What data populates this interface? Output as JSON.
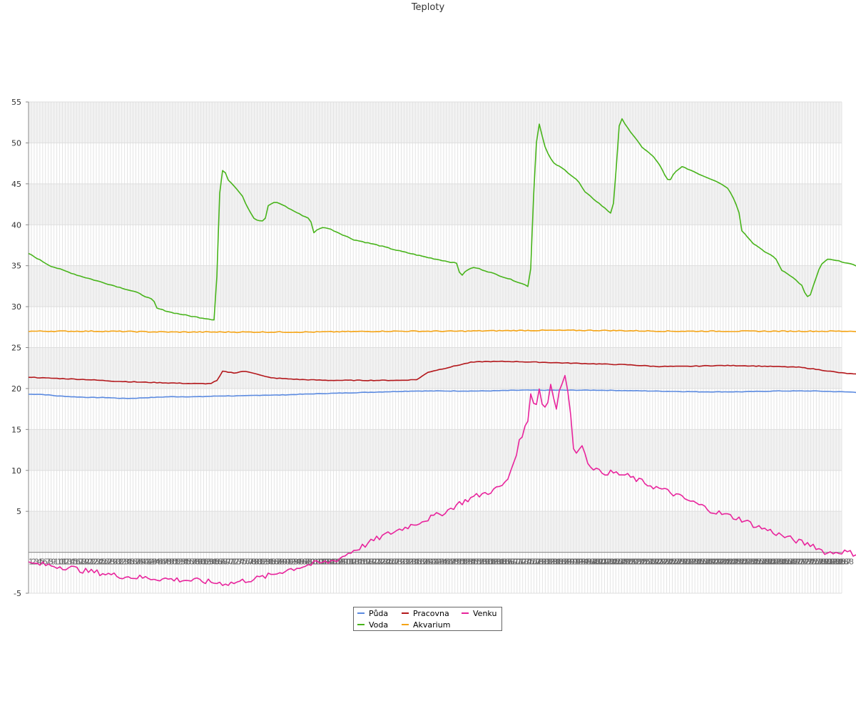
{
  "chart_data": {
    "type": "line",
    "title": "Teploty",
    "xlabel": "",
    "ylabel": "",
    "ylim": [
      -5,
      55
    ],
    "yticks": [
      -5,
      5,
      10,
      15,
      20,
      25,
      30,
      35,
      40,
      45,
      50,
      55
    ],
    "grid": true,
    "legend_position": "bottom-center",
    "num_points": 288,
    "x_tick_labels": "1..288 (overlapping, unreadable)",
    "series": [
      {
        "name": "Půda",
        "color": "#5b8ae0",
        "keypoints": [
          [
            0,
            19.3
          ],
          [
            15,
            19.3
          ],
          [
            30,
            19.2
          ],
          [
            40,
            19.1
          ],
          [
            60,
            19.0
          ],
          [
            90,
            18.9
          ],
          [
            110,
            18.9
          ],
          [
            130,
            18.8
          ],
          [
            145,
            18.8
          ],
          [
            170,
            18.9
          ],
          [
            200,
            19.0
          ],
          [
            240,
            19.0
          ],
          [
            270,
            19.1
          ],
          [
            300,
            19.1
          ],
          [
            330,
            19.2
          ],
          [
            350,
            19.2
          ],
          [
            380,
            19.3
          ],
          [
            420,
            19.4
          ],
          [
            460,
            19.5
          ],
          [
            500,
            19.6
          ],
          [
            540,
            19.7
          ],
          [
            560,
            19.7
          ],
          [
            600,
            19.7
          ],
          [
            640,
            19.7
          ],
          [
            690,
            19.8
          ],
          [
            700,
            19.8
          ],
          [
            740,
            19.8
          ],
          [
            760,
            19.8
          ],
          [
            800,
            19.8
          ],
          [
            870,
            19.7
          ],
          [
            940,
            19.6
          ],
          [
            1000,
            19.6
          ],
          [
            1050,
            19.7
          ],
          [
            1100,
            19.7
          ],
          [
            1180,
            19.5
          ]
        ]
      },
      {
        "name": "Voda",
        "color": "#48b41b",
        "keypoints": [
          [
            0,
            36.5
          ],
          [
            30,
            35.0
          ],
          [
            70,
            33.8
          ],
          [
            110,
            32.8
          ],
          [
            150,
            31.8
          ],
          [
            175,
            30.8
          ],
          [
            180,
            29.8
          ],
          [
            200,
            29.3
          ],
          [
            230,
            28.8
          ],
          [
            260,
            28.4
          ],
          [
            263,
            30.0
          ],
          [
            266,
            41.0
          ],
          [
            270,
            46.7
          ],
          [
            275,
            46.5
          ],
          [
            280,
            45.5
          ],
          [
            290,
            44.6
          ],
          [
            300,
            43.5
          ],
          [
            306,
            42.3
          ],
          [
            316,
            40.8
          ],
          [
            322,
            40.5
          ],
          [
            327,
            40.4
          ],
          [
            332,
            40.8
          ],
          [
            336,
            42.3
          ],
          [
            345,
            42.8
          ],
          [
            355,
            42.5
          ],
          [
            365,
            42.0
          ],
          [
            380,
            41.3
          ],
          [
            395,
            40.7
          ],
          [
            400,
            39.0
          ],
          [
            406,
            39.5
          ],
          [
            415,
            39.7
          ],
          [
            425,
            39.4
          ],
          [
            440,
            38.8
          ],
          [
            455,
            38.2
          ],
          [
            490,
            37.5
          ],
          [
            520,
            36.8
          ],
          [
            560,
            36.0
          ],
          [
            600,
            35.3
          ],
          [
            606,
            33.7
          ],
          [
            615,
            34.5
          ],
          [
            625,
            34.8
          ],
          [
            640,
            34.4
          ],
          [
            660,
            33.8
          ],
          [
            680,
            33.2
          ],
          [
            695,
            32.7
          ],
          [
            700,
            32.5
          ],
          [
            703,
            33.0
          ],
          [
            706,
            38.0
          ],
          [
            710,
            49.0
          ],
          [
            716,
            52.3
          ],
          [
            725,
            49.2
          ],
          [
            735,
            47.6
          ],
          [
            750,
            46.8
          ],
          [
            770,
            45.4
          ],
          [
            780,
            44.0
          ],
          [
            800,
            42.6
          ],
          [
            815,
            41.5
          ],
          [
            818,
            41.3
          ],
          [
            822,
            44.0
          ],
          [
            827,
            51.8
          ],
          [
            832,
            52.9
          ],
          [
            845,
            51.2
          ],
          [
            860,
            49.5
          ],
          [
            875,
            48.4
          ],
          [
            885,
            47.3
          ],
          [
            895,
            45.5
          ],
          [
            900,
            45.5
          ],
          [
            905,
            46.3
          ],
          [
            915,
            47.1
          ],
          [
            925,
            46.8
          ],
          [
            945,
            46.0
          ],
          [
            965,
            45.3
          ],
          [
            980,
            44.5
          ],
          [
            990,
            43.0
          ],
          [
            996,
            41.5
          ],
          [
            1000,
            39.3
          ],
          [
            1015,
            37.8
          ],
          [
            1030,
            36.8
          ],
          [
            1045,
            36.1
          ],
          [
            1050,
            35.5
          ],
          [
            1055,
            34.5
          ],
          [
            1065,
            34.0
          ],
          [
            1075,
            33.3
          ],
          [
            1085,
            32.5
          ],
          [
            1090,
            31.2
          ],
          [
            1095,
            31.2
          ],
          [
            1100,
            32.5
          ],
          [
            1110,
            35.0
          ],
          [
            1120,
            35.8
          ],
          [
            1140,
            35.5
          ],
          [
            1160,
            35.0
          ],
          [
            1180,
            34.2
          ]
        ]
      },
      {
        "name": "Pracovna",
        "color": "#b3171b",
        "keypoints": [
          [
            0,
            21.4
          ],
          [
            20,
            21.3
          ],
          [
            50,
            21.2
          ],
          [
            80,
            21.1
          ],
          [
            120,
            20.9
          ],
          [
            150,
            20.8
          ],
          [
            190,
            20.7
          ],
          [
            230,
            20.6
          ],
          [
            255,
            20.6
          ],
          [
            265,
            21.0
          ],
          [
            272,
            22.1
          ],
          [
            280,
            22.0
          ],
          [
            290,
            21.9
          ],
          [
            300,
            22.1
          ],
          [
            310,
            22.0
          ],
          [
            320,
            21.8
          ],
          [
            330,
            21.5
          ],
          [
            340,
            21.3
          ],
          [
            380,
            21.1
          ],
          [
            420,
            21.0
          ],
          [
            470,
            21.0
          ],
          [
            520,
            21.0
          ],
          [
            545,
            21.1
          ],
          [
            560,
            22.0
          ],
          [
            575,
            22.3
          ],
          [
            600,
            22.8
          ],
          [
            620,
            23.2
          ],
          [
            640,
            23.3
          ],
          [
            680,
            23.3
          ],
          [
            720,
            23.2
          ],
          [
            760,
            23.1
          ],
          [
            800,
            23.0
          ],
          [
            840,
            22.9
          ],
          [
            880,
            22.7
          ],
          [
            920,
            22.7
          ],
          [
            960,
            22.8
          ],
          [
            1000,
            22.8
          ],
          [
            1040,
            22.7
          ],
          [
            1080,
            22.6
          ],
          [
            1100,
            22.4
          ],
          [
            1140,
            21.9
          ],
          [
            1180,
            21.6
          ]
        ]
      },
      {
        "name": "Akvarium",
        "color": "#f5a415",
        "keypoints": [
          [
            0,
            27.0
          ],
          [
            100,
            27.0
          ],
          [
            200,
            26.9
          ],
          [
            300,
            26.9
          ],
          [
            400,
            26.9
          ],
          [
            500,
            27.0
          ],
          [
            600,
            27.0
          ],
          [
            700,
            27.1
          ],
          [
            750,
            27.1
          ],
          [
            800,
            27.1
          ],
          [
            900,
            27.0
          ],
          [
            1000,
            27.0
          ],
          [
            1100,
            27.0
          ],
          [
            1180,
            27.0
          ]
        ]
      },
      {
        "name": "Venku",
        "color": "#e8249c",
        "keypoints": [
          [
            0,
            -1.4
          ],
          [
            20,
            -1.5
          ],
          [
            40,
            -1.7
          ],
          [
            60,
            -1.9
          ],
          [
            80,
            -2.3
          ],
          [
            100,
            -2.5
          ],
          [
            120,
            -2.8
          ],
          [
            140,
            -3.0
          ],
          [
            160,
            -3.1
          ],
          [
            180,
            -3.2
          ],
          [
            200,
            -3.3
          ],
          [
            220,
            -3.4
          ],
          [
            240,
            -3.5
          ],
          [
            260,
            -3.7
          ],
          [
            280,
            -3.8
          ],
          [
            290,
            -3.7
          ],
          [
            300,
            -3.5
          ],
          [
            320,
            -3.2
          ],
          [
            340,
            -2.8
          ],
          [
            360,
            -2.2
          ],
          [
            380,
            -1.8
          ],
          [
            400,
            -1.4
          ],
          [
            420,
            -1.2
          ],
          [
            435,
            -0.8
          ],
          [
            445,
            -0.3
          ],
          [
            455,
            0.2
          ],
          [
            470,
            0.8
          ],
          [
            485,
            1.5
          ],
          [
            500,
            2.1
          ],
          [
            515,
            2.6
          ],
          [
            530,
            3.1
          ],
          [
            545,
            3.6
          ],
          [
            560,
            4.1
          ],
          [
            575,
            4.6
          ],
          [
            590,
            5.2
          ],
          [
            600,
            5.8
          ],
          [
            610,
            6.2
          ],
          [
            625,
            6.8
          ],
          [
            640,
            7.2
          ],
          [
            655,
            7.7
          ],
          [
            670,
            8.5
          ],
          [
            680,
            11.0
          ],
          [
            690,
            14.0
          ],
          [
            700,
            16.0
          ],
          [
            705,
            20.5
          ],
          [
            710,
            17.0
          ],
          [
            716,
            20.2
          ],
          [
            720,
            18.0
          ],
          [
            727,
            17.8
          ],
          [
            732,
            20.5
          ],
          [
            740,
            17.5
          ],
          [
            745,
            20.5
          ],
          [
            752,
            21.5
          ],
          [
            758,
            19.0
          ],
          [
            763,
            13.0
          ],
          [
            768,
            11.8
          ],
          [
            775,
            13.7
          ],
          [
            782,
            11.2
          ],
          [
            790,
            10.5
          ],
          [
            800,
            9.8
          ],
          [
            820,
            9.7
          ],
          [
            840,
            9.3
          ],
          [
            860,
            8.6
          ],
          [
            880,
            7.9
          ],
          [
            900,
            7.3
          ],
          [
            920,
            6.5
          ],
          [
            940,
            5.8
          ],
          [
            960,
            5.0
          ],
          [
            980,
            4.5
          ],
          [
            1000,
            4.0
          ],
          [
            1020,
            3.2
          ],
          [
            1040,
            2.6
          ],
          [
            1060,
            1.9
          ],
          [
            1080,
            1.3
          ],
          [
            1090,
            1.0
          ],
          [
            1100,
            0.9
          ],
          [
            1110,
            0.3
          ],
          [
            1120,
            -0.1
          ],
          [
            1140,
            0.1
          ],
          [
            1160,
            -0.2
          ],
          [
            1180,
            -0.4
          ]
        ]
      }
    ]
  }
}
